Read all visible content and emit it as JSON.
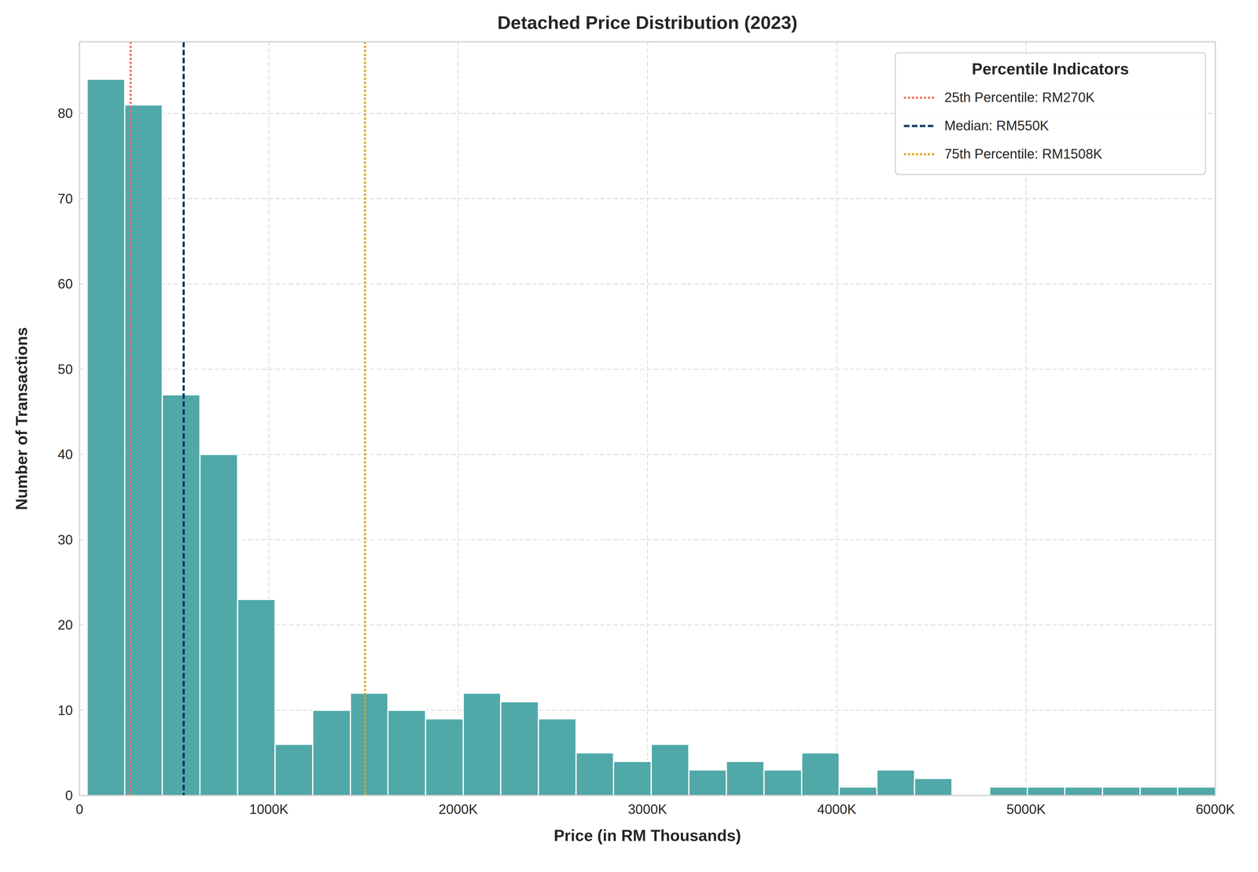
{
  "chart_data": {
    "type": "histogram",
    "title": "Detached Price Distribution (2023)",
    "x_label": "Price (in RM Thousands)",
    "y_label": "Number of Transactions",
    "bins": [
      40,
      239,
      437,
      636,
      835,
      1033,
      1232,
      1431,
      1629,
      1828,
      2027,
      2225,
      2424,
      2623,
      2821,
      3020,
      3219,
      3417,
      3616,
      3815,
      4013,
      4212,
      4411,
      4609,
      4808,
      5007,
      5205,
      5404,
      5603,
      5801,
      6000
    ],
    "values": [
      84,
      81,
      47,
      40,
      23,
      6,
      10,
      12,
      10,
      9,
      12,
      11,
      9,
      5,
      4,
      6,
      3,
      4,
      3,
      5,
      1,
      3,
      2,
      0,
      1,
      1,
      1,
      1,
      1,
      1
    ],
    "color": "#4ba5a5",
    "xlim": [
      0,
      6000
    ],
    "ylim": [
      0,
      88.4
    ],
    "xticks": [
      0,
      {
        "value": 1000,
        "label": "1000K"
      },
      {
        "value": 2000,
        "label": "2000K"
      },
      {
        "value": 3000,
        "label": "3000K"
      },
      {
        "value": 4000,
        "label": "4000K"
      },
      {
        "value": 5000,
        "label": "5000K"
      },
      {
        "value": 6000,
        "label": "6000K"
      }
    ],
    "yticks": [
      0,
      10,
      20,
      30,
      40,
      50,
      60,
      70,
      80
    ],
    "grid": true,
    "legend": "upper right",
    "legend_title": "Percentile Indicators",
    "reference_lines": [
      {
        "name": "25th Percentile: RM270K",
        "value": 270,
        "color": "#f4706a",
        "line_style": "dotted"
      },
      {
        "name": "Median: RM550K",
        "value": 550,
        "color": "#0d3163",
        "line_style": "dashed"
      },
      {
        "name": "75th Percentile: RM1508K",
        "value": 1508,
        "color": "#e0a526",
        "line_style": "dotted"
      }
    ]
  }
}
